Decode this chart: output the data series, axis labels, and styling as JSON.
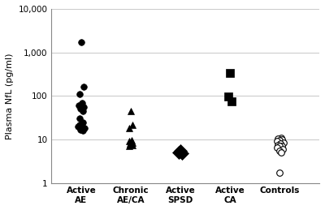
{
  "groups": [
    "Active\nAE",
    "Chronic\nAE/CA",
    "Active\nSPSD",
    "Active\nCA",
    "Controls"
  ],
  "x_positions": [
    1,
    2,
    3,
    4,
    5
  ],
  "active_ae": [
    1700,
    160,
    110,
    70,
    60,
    55,
    50,
    45,
    30,
    25,
    22,
    20,
    20,
    18,
    17,
    16
  ],
  "chronic_aeca": [
    45,
    22,
    18,
    9.5,
    9,
    8.5,
    8,
    7.5,
    7
  ],
  "active_spsd": [
    5.5,
    5.0,
    4.8
  ],
  "active_ca": [
    340,
    95,
    75
  ],
  "controls": [
    11,
    10.5,
    10,
    9.5,
    9,
    8.5,
    8,
    7.5,
    7,
    7,
    6.5,
    6,
    5.5,
    5,
    1.7
  ],
  "ylim": [
    1,
    10000
  ],
  "yticks": [
    1,
    10,
    100,
    1000,
    10000
  ],
  "ytick_labels": [
    "1",
    "10",
    "100",
    "1,000",
    "10,000"
  ],
  "ylabel": "Plasma NfL (pg/ml)",
  "marker_ae": "o",
  "marker_chronic": "^",
  "marker_spsd": "D",
  "marker_ca": "s",
  "marker_controls": "o",
  "color_filled": "black",
  "color_open": "white",
  "bg_color": "white",
  "grid_color": "#cccccc"
}
